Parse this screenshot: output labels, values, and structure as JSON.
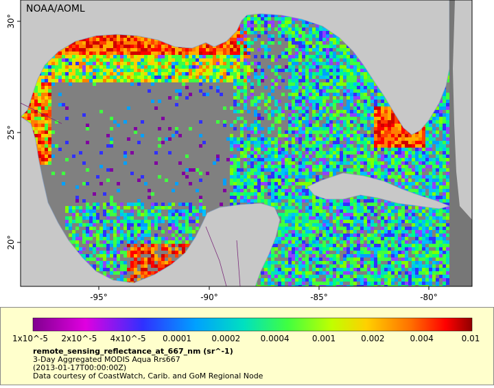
{
  "map": {
    "attribution": "NOAA/AOML",
    "lat_labels": [
      "30°",
      "25°",
      "20°"
    ],
    "lon_labels": [
      "-95°",
      "-90°",
      "-85°",
      "-80°"
    ]
  },
  "colorbar": {
    "labels": [
      "1x10^-5",
      "2x10^-5",
      "4x10^-5",
      "0.0001",
      "0.0002",
      "0.0004",
      "0.001",
      "0.002",
      "0.004",
      "0.01"
    ]
  },
  "legend": {
    "variable": "remote_sensing_reflectance_at_667_nm (sr^-1)",
    "lines": [
      "3-Day Aggregated MODIS Aqua Rrs667",
      "(2013-01-17T00:00:00Z)",
      "Data courtesy of CoastWatch, Carib. and GoM Regional Node"
    ]
  }
}
